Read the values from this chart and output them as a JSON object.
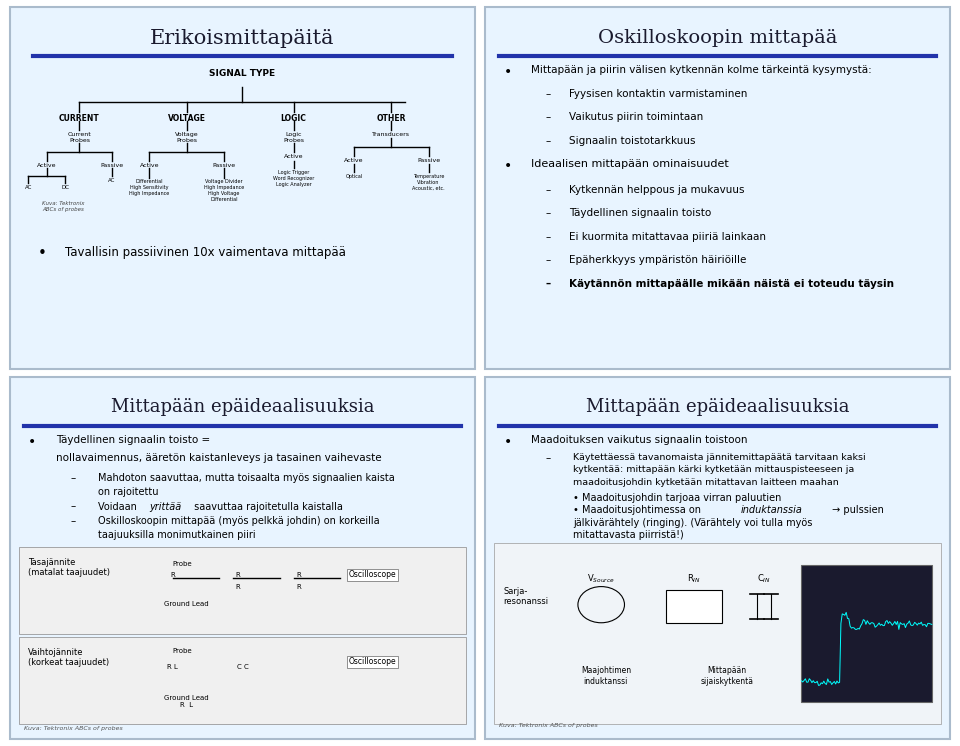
{
  "bg_outer": "#ffffff",
  "bg_slide": "#ddeeff",
  "bg_slide_light": "#e8f4ff",
  "title_color": "#1a1a2e",
  "text_color": "#1a1a1a",
  "blue_bar_color": "#2233aa",
  "slide1_title": "Erikoismittapäitä",
  "slide2_title": "Oskilloskoopin mittapää",
  "slide3_title": "Mittapään epäideaalisuuksia",
  "slide4_title": "Mittapään epäideaalisuuksia",
  "slide2_bullet1": "Mittapään ja piirin välisen kytkennän kolme tärkeintä kysymystä:",
  "slide2_sub1": "Fyysisen kontaktin varmistaminen",
  "slide2_sub2": "Vaikutus piirin toimintaan",
  "slide2_sub3": "Signaalin toistotarkkuus",
  "slide2_bullet2": "Ideaalisen mittapään ominaisuudet",
  "slide2_sub4": "Kytkennän helppous ja mukavuus",
  "slide2_sub5": "Täydellinen signaalin toisto",
  "slide2_sub6": "Ei kuormita mitattavaa piiriä lainkaan",
  "slide2_sub7": "Epäherkkyys ympäristön häiriöille",
  "slide2_sub8_bold": "Käytännön mittapäälle mikään näistä ei toteudu täysin",
  "slide1_bullet": "Tavallisin passiivinen 10x vaimentava mittapää",
  "slide3_bullet1": "Täydellinen signaalin toisto =",
  "slide3_bullet1b": "nollavaimennus, ääretön kaistanleveys ja tasainen vaihevaste",
  "slide3_sub1": "Mahdoton saavuttaa, mutta toisaalta myös signaalien kaista on rajoitettu",
  "slide3_sub2_italic": "yrittää",
  "slide3_sub2": "Voidaan  saavuttaa rajoitetulla kaistalla",
  "slide3_sub3": "Oskilloskoopin mittapää (myös pelkkä johdin) on korkeilla taajuuksilla monimutkainen piiri",
  "slide3_label1": "Tasajännite\n(matalat taajuudet)",
  "slide3_label2": "Vaihtojännite\n(korkeat taajuudet)",
  "slide3_source": "Kuva: Tektronix ABCs of probes",
  "slide4_bullet1": "Maadoituksen vaikutus signaalin toistoon",
  "slide4_sub1": "Käytettäessä tavanomaista jännitemittapäätä tarvitaan kaksi kytkentää: mittapään kärki kytketään mittauspisteeseen ja maadoitusjohdin kytketään mitattavan laitteen maahan",
  "slide4_sub2": "Maadoitusjohdin tarjoaa virran paluutien",
  "slide4_sub3_italic": "induktanssia",
  "slide4_sub3": "Maadoitusjohtimessa on  → pulssien jälkivärähtely (ringing). (Värähtely voi tulla myös mitattavasta piirristä!)",
  "slide4_label1": "Sarja-\nresonanssi",
  "slide4_source": "Kuva: Tektronix ABCs of probes"
}
